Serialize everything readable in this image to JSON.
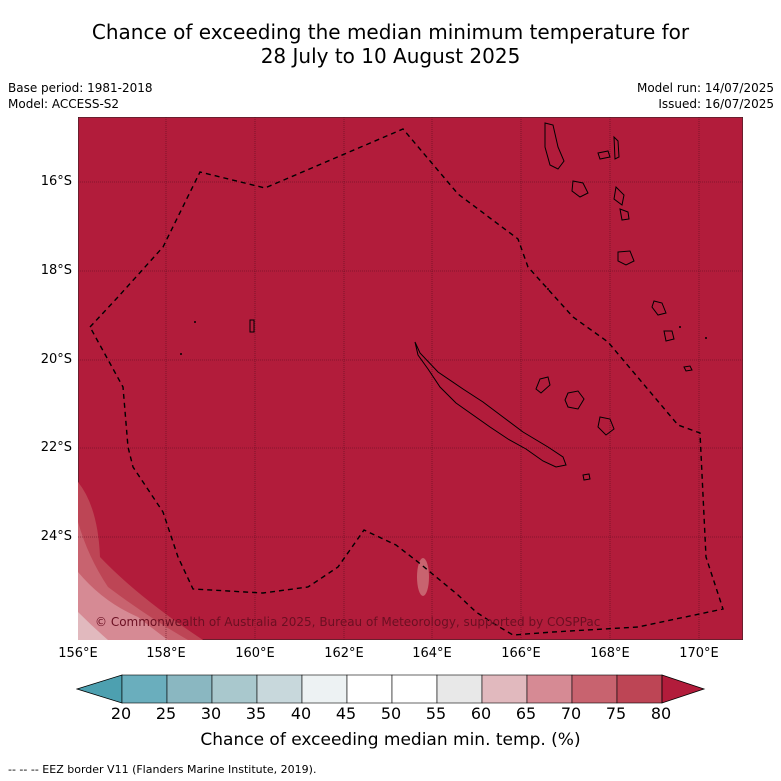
{
  "title": {
    "line1": "Chance of exceeding the median minimum temperature for",
    "line2": "28 July to 10 August 2025"
  },
  "meta": {
    "base_period": "Base period: 1981-2018",
    "model": "Model: ACCESS-S2",
    "model_run": "Model run: 14/07/2025",
    "issued": "Issued: 16/07/2025"
  },
  "map": {
    "lat_labels": [
      "16°S",
      "18°S",
      "20°S",
      "22°S",
      "24°S"
    ],
    "lon_labels": [
      "156°E",
      "158°E",
      "160°E",
      "162°E",
      "164°E",
      "166°E",
      "168°E",
      "170°E"
    ],
    "copyright": "© Commonwealth of Australia 2025, Bureau of Meteorology, supported by COSPPac",
    "background_color": "#b21c3b"
  },
  "colorbar": {
    "ticks": [
      "20",
      "25",
      "30",
      "35",
      "40",
      "45",
      "50",
      "55",
      "60",
      "65",
      "70",
      "75",
      "80"
    ],
    "colors": [
      "#4da0b0",
      "#6aaebd",
      "#8ab7c1",
      "#a9c8cd",
      "#c8d8dc",
      "#edf2f3",
      "#ffffff",
      "#ffffff",
      "#e8e8e8",
      "#e1b9be",
      "#d68a94",
      "#c8636f",
      "#bd4555",
      "#b21c3b"
    ],
    "label": "Chance of exceeding median min. temp. (%)"
  },
  "footnote": "--  --  -- EEZ border V11 (Flanders Marine Institute, 2019)."
}
